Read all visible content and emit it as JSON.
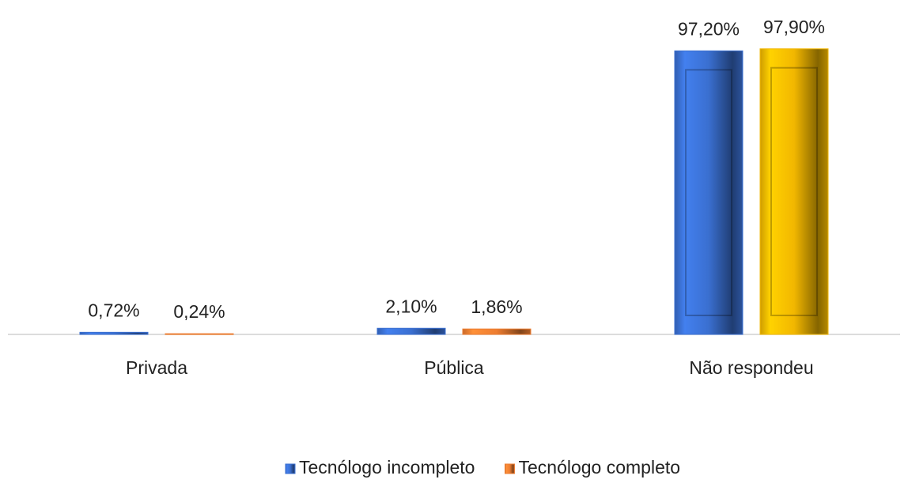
{
  "chart_data": {
    "type": "bar",
    "categories": [
      "Privada",
      "Pública",
      "Não respondeu"
    ],
    "series": [
      {
        "name": "Tecnólogo incompleto",
        "color": "#3a6fd0",
        "values": [
          0.72,
          2.1,
          97.2
        ],
        "value_labels": [
          "0,72%",
          "2,10%",
          "97,20%"
        ]
      },
      {
        "name": "Tecnólogo completo",
        "color": "#ed7d31",
        "colors": [
          "#ed7d31",
          "#ed7d31",
          "#f2b700"
        ],
        "values": [
          0.24,
          1.86,
          97.9
        ],
        "value_labels": [
          "0,24%",
          "1,86%",
          "97,90%"
        ]
      }
    ],
    "ylim": [
      0,
      100
    ],
    "legend": "bottom"
  }
}
